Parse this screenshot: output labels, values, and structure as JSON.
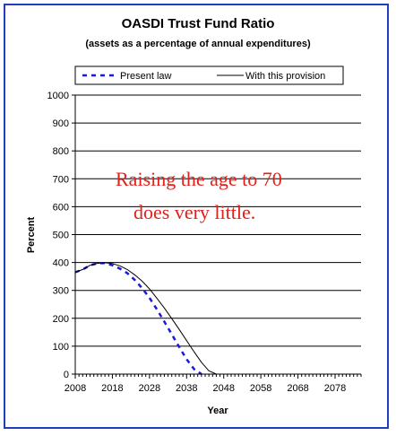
{
  "chart_data": {
    "type": "line",
    "title": "OASDI Trust Fund Ratio",
    "subtitle": "(assets as a percentage of annual expenditures)",
    "xlabel": "Year",
    "ylabel": "Percent",
    "xlim": [
      2008,
      2085
    ],
    "ylim": [
      0,
      1000
    ],
    "x_ticks": [
      2008,
      2018,
      2028,
      2038,
      2048,
      2058,
      2068,
      2078
    ],
    "y_ticks": [
      0,
      100,
      200,
      300,
      400,
      500,
      600,
      700,
      800,
      900,
      1000
    ],
    "grid": "horizontal",
    "legend_position": "top",
    "annotation": [
      "Raising the age to 70",
      "does very little."
    ],
    "series": [
      {
        "name": "Present law",
        "style": "dashed",
        "color": "#1a1adc",
        "x": [
          2008,
          2010,
          2012,
          2014,
          2016,
          2018,
          2020,
          2022,
          2024,
          2026,
          2028,
          2030,
          2032,
          2034,
          2036,
          2038,
          2040,
          2042
        ],
        "y": [
          365,
          375,
          390,
          397,
          398,
          390,
          378,
          362,
          338,
          308,
          273,
          232,
          188,
          143,
          97,
          53,
          18,
          0
        ]
      },
      {
        "name": "With this provision",
        "style": "solid",
        "color": "#000000",
        "x": [
          2008,
          2010,
          2012,
          2014,
          2016,
          2018,
          2020,
          2022,
          2024,
          2026,
          2028,
          2030,
          2032,
          2034,
          2036,
          2038,
          2040,
          2042,
          2044,
          2046
        ],
        "y": [
          365,
          375,
          390,
          397,
          399,
          396,
          388,
          375,
          356,
          333,
          305,
          272,
          237,
          199,
          160,
          120,
          80,
          42,
          12,
          0
        ]
      }
    ]
  }
}
